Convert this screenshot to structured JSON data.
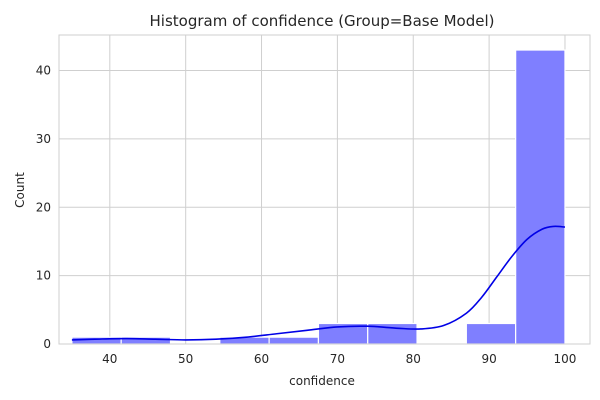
{
  "chart_data": {
    "type": "histogram",
    "title": "Histogram of confidence (Group=Base Model)",
    "xlabel": "confidence",
    "ylabel": "Count",
    "xlim": [
      33.3,
      103.3
    ],
    "ylim": [
      0,
      45.2
    ],
    "xticks": [
      40,
      50,
      60,
      70,
      80,
      90,
      100
    ],
    "yticks": [
      0,
      10,
      20,
      30,
      40
    ],
    "grid": true,
    "bar_color": "#7f7fff",
    "kde_color": "#0000e6",
    "bins": [
      {
        "x0": 35.0,
        "x1": 41.5,
        "count": 1
      },
      {
        "x0": 41.5,
        "x1": 48.0,
        "count": 1
      },
      {
        "x0": 48.0,
        "x1": 54.5,
        "count": 0
      },
      {
        "x0": 54.5,
        "x1": 61.0,
        "count": 1
      },
      {
        "x0": 61.0,
        "x1": 67.5,
        "count": 1
      },
      {
        "x0": 67.5,
        "x1": 74.0,
        "count": 3
      },
      {
        "x0": 74.0,
        "x1": 80.5,
        "count": 3
      },
      {
        "x0": 80.5,
        "x1": 87.0,
        "count": 0
      },
      {
        "x0": 87.0,
        "x1": 93.5,
        "count": 3
      },
      {
        "x0": 93.5,
        "x1": 100.0,
        "count": 43
      }
    ],
    "kde": {
      "x": [
        35,
        38,
        42,
        46,
        50,
        54,
        58,
        62,
        66,
        70,
        74,
        78,
        81,
        84,
        87,
        89,
        91,
        93,
        95,
        97,
        98.5,
        100
      ],
      "y": [
        0.6,
        0.7,
        0.8,
        0.7,
        0.6,
        0.7,
        1.0,
        1.5,
        2.0,
        2.5,
        2.6,
        2.3,
        2.2,
        2.7,
        4.5,
        6.8,
        9.8,
        12.8,
        15.3,
        16.8,
        17.2,
        17.1
      ]
    }
  }
}
